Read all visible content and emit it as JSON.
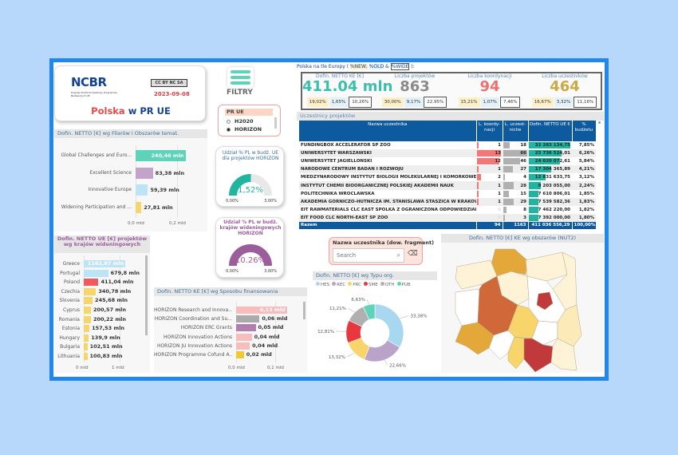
{
  "logo": {
    "brand": "NCBR",
    "subtitle": "Krajowy Punkt Kontaktowy Programów Badawczych UE",
    "license": "CC BY NC SA",
    "date": "2023-09-08",
    "title_red": "Polska",
    "title_blue": "w PR UE"
  },
  "filters": {
    "label": "FILTRY",
    "icon": "hamburger-icon"
  },
  "slicer": {
    "title": "PR UE",
    "options": [
      {
        "label": "H2020",
        "selected": false
      },
      {
        "label": "HORIZON",
        "selected": true
      }
    ]
  },
  "pillars": {
    "title": "Dofin. NETTO [€] wg Filarów i Obszarów temat.",
    "items": [
      {
        "label": "Global Challenges and Euro...",
        "value": 240.46,
        "text": "240,46 mln",
        "color": "#5fd3b9"
      },
      {
        "label": "Excellent Science",
        "value": 83.38,
        "text": "83,38 mln",
        "color": "#c3a3c9"
      },
      {
        "label": "Innovative Europe",
        "value": 59.39,
        "text": "59,39 mln",
        "color": "#bde3f7"
      },
      {
        "label": "Widening Participation and ...",
        "value": 27.81,
        "text": "27,81 mln",
        "color": "#f7d56a"
      }
    ],
    "axis": [
      "0,0 mld",
      "0,2 mld"
    ]
  },
  "gauge1": {
    "title": "Udział % PL w budż. UE dla projektów HORIZON",
    "value": 1.52,
    "text": "1,52%",
    "min": "0,00%",
    "max": "3,00%",
    "color": "#1fb5a0"
  },
  "gauge2": {
    "title": "Udział % PL w budż. krajów wideningowych HORIZON",
    "value": 10.26,
    "text": "10.26%",
    "min": "0,00%",
    "max": "3,00%",
    "color": "#9b5e9b"
  },
  "widening": {
    "title": "Dofin. NETTO UE [€] projektów wg krajów wideningowych",
    "items": [
      {
        "label": "Greece",
        "value": 1162.87,
        "text": "1162,87 mln",
        "color": "#bde3f7"
      },
      {
        "label": "Portugal",
        "value": 679.8,
        "text": "679,8 mln",
        "color": "#bde3f7"
      },
      {
        "label": "Poland",
        "value": 411.04,
        "text": "411,04 mln",
        "color": "#ef5a5a"
      },
      {
        "label": "Czechia",
        "value": 340.78,
        "text": "340,78 mln",
        "color": "#f7d56a"
      },
      {
        "label": "Slovenia",
        "value": 245.68,
        "text": "245,68 mln",
        "color": "#f7d56a"
      },
      {
        "label": "Cyprus",
        "value": 200.57,
        "text": "200,57 mln",
        "color": "#f7d56a"
      },
      {
        "label": "Romania",
        "value": 200.22,
        "text": "200,22 mln",
        "color": "#f7d56a"
      },
      {
        "label": "Estonia",
        "value": 157.53,
        "text": "157,53 mln",
        "color": "#f7d56a"
      },
      {
        "label": "Hungary",
        "value": 139.9,
        "text": "139,9 mln",
        "color": "#f7d56a"
      },
      {
        "label": "Bulgaria",
        "value": 102.51,
        "text": "102,51 mln",
        "color": "#f7d56a"
      },
      {
        "label": "Lithuania",
        "value": 100.83,
        "text": "100,83 mln",
        "color": "#f7d56a"
      }
    ],
    "axis": [
      "0 mld",
      "1 mld"
    ]
  },
  "funding": {
    "title": "Dofin. NETTO KE [€] wg Sposobu finansowania",
    "items": [
      {
        "label": "HORIZON Research and Innova...",
        "value": 0.13,
        "text": "0,13 mld",
        "color": "#f7bcbc"
      },
      {
        "label": "HORIZON Coordination and Su...",
        "value": 0.06,
        "text": "0,06 mld",
        "color": "#aaaaaa"
      },
      {
        "label": "HORIZON ERC Grants",
        "value": 0.05,
        "text": "0,05 mld",
        "color": "#b07fb0"
      },
      {
        "label": "HORIZON Innovation Actions",
        "value": 0.04,
        "text": "0,04 mld",
        "color": "#f7bcbc"
      },
      {
        "label": "HORIZON JU Innovation Actions",
        "value": 0.035,
        "text": "0,04 mld",
        "color": "#f7bcbc"
      },
      {
        "label": "HORIZON Programme Cofund A...",
        "value": 0.02,
        "text": "0,02 mld",
        "color": "#f2c831"
      }
    ],
    "axis": [
      "0,0 mld",
      "0,1 mld"
    ]
  },
  "europe": {
    "prefix": "Polska na tle Europy (",
    "new": "%NEW,",
    "old": "%OLD",
    "amp": "&",
    "wide": "%WIDE",
    "suffix": "):"
  },
  "kpis": [
    {
      "title": "Dofin. NETTO KE [€]",
      "value": "411.04 mln",
      "color": "#3bbfad",
      "pcts": [
        "19,02%",
        "1,65%",
        "10,26%"
      ]
    },
    {
      "title": "Liczba projektów",
      "value": "863",
      "color": "#8a8a8a",
      "pcts": [
        "30,00%",
        "9,17%",
        "22,95%"
      ]
    },
    {
      "title": "Liczba koordynacji",
      "value": "94",
      "color": "#f07070",
      "pcts": [
        "15,21%",
        "1,07%",
        "7,46%"
      ]
    },
    {
      "title": "Liczba uczestników",
      "value": "464",
      "color": "#c9aa45",
      "pcts": [
        "16,67%",
        "3,32%",
        "11,16%"
      ]
    }
  ],
  "participants": {
    "title": "Uczestnicy projektów",
    "headers": [
      "Nazwa uczestnika",
      "L. koordy-nacji",
      "L. uczest-nictw",
      "Dofin. NETTO UE €",
      "% budżetu"
    ],
    "rows": [
      [
        "FUNDINGBOX ACCELERATOR SP ZOO",
        1,
        18,
        32283134.75,
        "32 283 134,75",
        "7,85%"
      ],
      [
        "UNIWERSYTET WARSZAWSKI",
        13,
        66,
        25736524.01,
        "25 736 524,01",
        "6,26%"
      ],
      [
        "UNIWERSYTET JAGIELLONSKI",
        12,
        46,
        24020072.61,
        "24 020 072,61",
        "5,84%"
      ],
      [
        "NARODOWE CENTRUM BADAN I ROZWOJU",
        1,
        27,
        17304365.89,
        "17 304 365,89",
        "4,21%"
      ],
      [
        "MIEDZYNARODOWY INSTYTUT BIOLOGII MOLEKULARNEJ I KOMORKOWEJ ...",
        2,
        4,
        12831633.75,
        "12 831 633,75",
        "3,12%"
      ],
      [
        "INSTYTUT CHEMII BIOORGANICZNEJ POLSKIEJ AKADEMII NAUK",
        1,
        28,
        9203055.0,
        "9 203 055,00",
        "2,24%"
      ],
      [
        "POLITECHNIKA WROCLAWSKA",
        1,
        15,
        7610806.01,
        "7 610 806,01",
        "1,85%"
      ],
      [
        "AKADEMIA GORNICZO-HUTNICZA IM. STANISLAWA STASZICA W KRAKOWIE",
        1,
        29,
        7539582.36,
        "7 539 582,36",
        "1,83%"
      ],
      [
        "EIT RAWMATERIALS CLC EAST SPOLKA Z OGRANICZONA ODPOWIEDZIALNO...",
        0,
        8,
        7462220.0,
        "7 462 220,00",
        "1,82%"
      ],
      [
        "EIT FOOD CLC NORTH-EAST SP ZOO",
        0,
        3,
        7392000.0,
        "7 392 000,00",
        "1,80%"
      ]
    ],
    "total": [
      "Razem",
      "94",
      "1163",
      "411 036 556,29",
      "100,00%"
    ]
  },
  "search": {
    "title": "Nazwa uczestnika (dow. fragment)",
    "placeholder": "Search"
  },
  "donut": {
    "title": "Dofin. NETTO [€] wg Typu org.",
    "slices": [
      {
        "label": "HES",
        "value": 33.38,
        "text": "33,38%",
        "color": "#a8d8f0"
      },
      {
        "label": "REC",
        "value": 22.66,
        "text": "22,66%",
        "color": "#b9a3c9"
      },
      {
        "label": "PRC",
        "value": 13.32,
        "text": "13,32%",
        "color": "#f7d56a"
      },
      {
        "label": "SME",
        "value": 12.81,
        "text": "12,81%",
        "color": "#e8383d"
      },
      {
        "label": "OTH",
        "value": 11.21,
        "text": "11,21%",
        "color": "#b0b0b0"
      },
      {
        "label": "PUB",
        "value": 6.63,
        "text": "6,63%",
        "color": "#5fd3b9"
      }
    ]
  },
  "map": {
    "title": "Dofin. NETTO [€] KE wg obszarów (NUT2)"
  }
}
